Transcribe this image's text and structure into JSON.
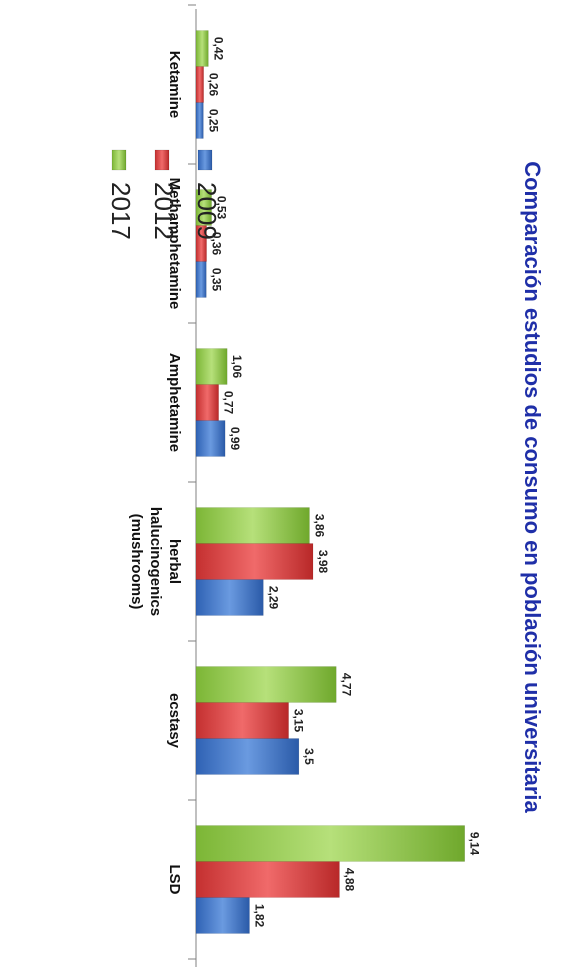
{
  "chart_data": {
    "type": "bar",
    "orientation": "horizontal",
    "title": "Comparación estudios de consumo en población universitaria",
    "categories": [
      "LSD",
      "ecstasy",
      "herbal halucinogenics (mushrooms)",
      "Amphetamine",
      "Methamphetamine",
      "Ketamine"
    ],
    "category_lines": [
      [
        "LSD"
      ],
      [
        "ecstasy"
      ],
      [
        "herbal",
        "halucinogenics",
        "(mushrooms)"
      ],
      [
        "Amphetamine"
      ],
      [
        "Methamphetamine"
      ],
      [
        "Ketamine"
      ]
    ],
    "series": [
      {
        "name": "2009",
        "values": [
          1.82,
          3.5,
          2.29,
          0.99,
          0.35,
          0.25
        ],
        "labels": [
          "1,82",
          "3,5",
          "2,29",
          "0,99",
          "0,35",
          "0,25"
        ],
        "color": "#3b6fc4"
      },
      {
        "name": "2012",
        "values": [
          4.88,
          3.15,
          3.98,
          0.77,
          0.36,
          0.26
        ],
        "labels": [
          "4,88",
          "3,15",
          "3,98",
          "0,77",
          "0,36",
          "0,26"
        ],
        "color": "#d93a3a"
      },
      {
        "name": "2017",
        "values": [
          9.14,
          4.77,
          3.86,
          1.06,
          0.53,
          0.42
        ],
        "labels": [
          "9,14",
          "4,77",
          "3,86",
          "1,06",
          "0,53",
          "0,42"
        ],
        "color": "#8cc63f"
      }
    ],
    "xlim": [
      0,
      10
    ],
    "legend_position": "bottom-right",
    "grid": false,
    "rotation": "90deg clockwise"
  }
}
